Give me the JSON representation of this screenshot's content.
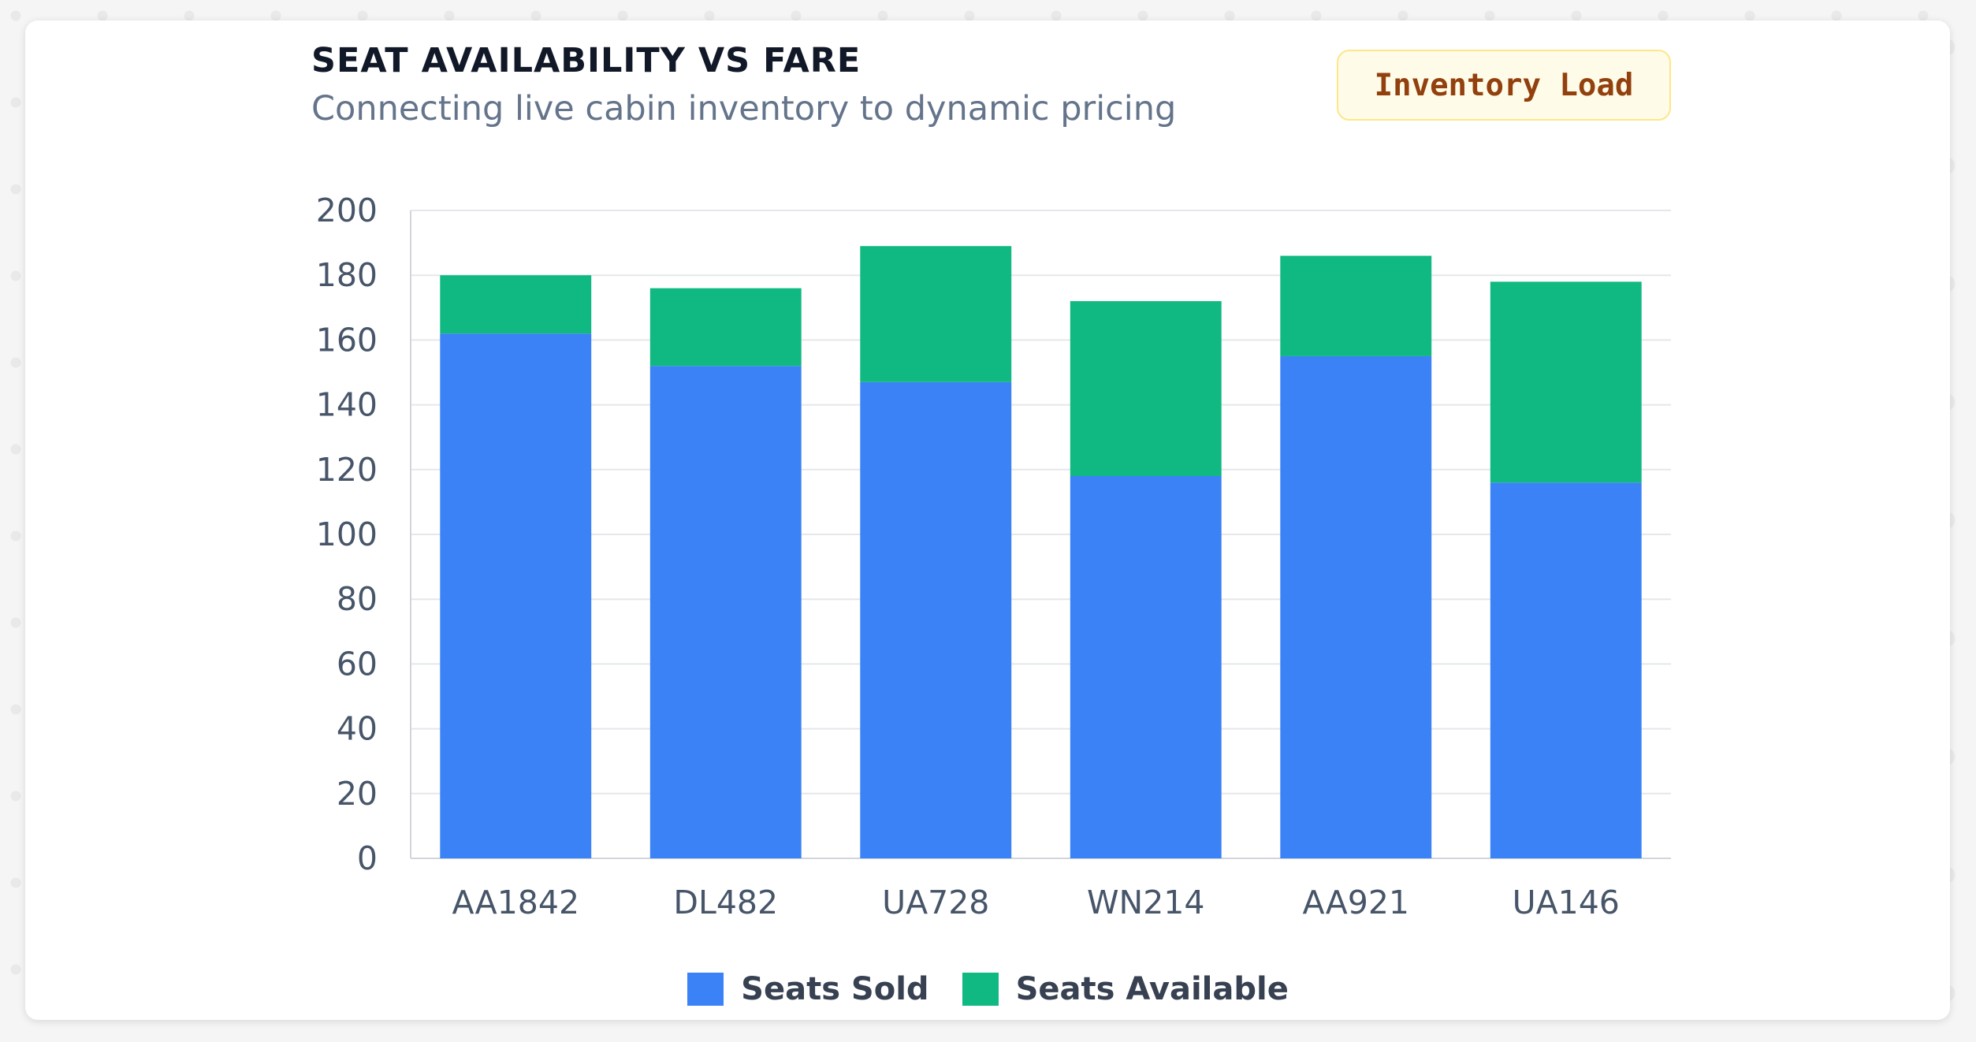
{
  "header": {
    "title": "SEAT AVAILABILITY VS FARE",
    "subtitle": "Connecting live cabin inventory to dynamic pricing",
    "badge": "Inventory Load"
  },
  "chart_data": {
    "type": "bar",
    "stacked": true,
    "categories": [
      "AA1842",
      "DL482",
      "UA728",
      "WN214",
      "AA921",
      "UA146"
    ],
    "series": [
      {
        "name": "Seats Sold",
        "color": "#3b82f6",
        "values": [
          162,
          152,
          147,
          118,
          155,
          116
        ]
      },
      {
        "name": "Seats Available",
        "color": "#10b981",
        "values": [
          18,
          24,
          42,
          54,
          31,
          62
        ]
      }
    ],
    "ylim": [
      0,
      200
    ],
    "yticks": [
      "0",
      "20",
      "40",
      "60",
      "80",
      "100",
      "120",
      "140",
      "160",
      "180",
      "200"
    ],
    "grid": true,
    "legend": "bottom"
  }
}
